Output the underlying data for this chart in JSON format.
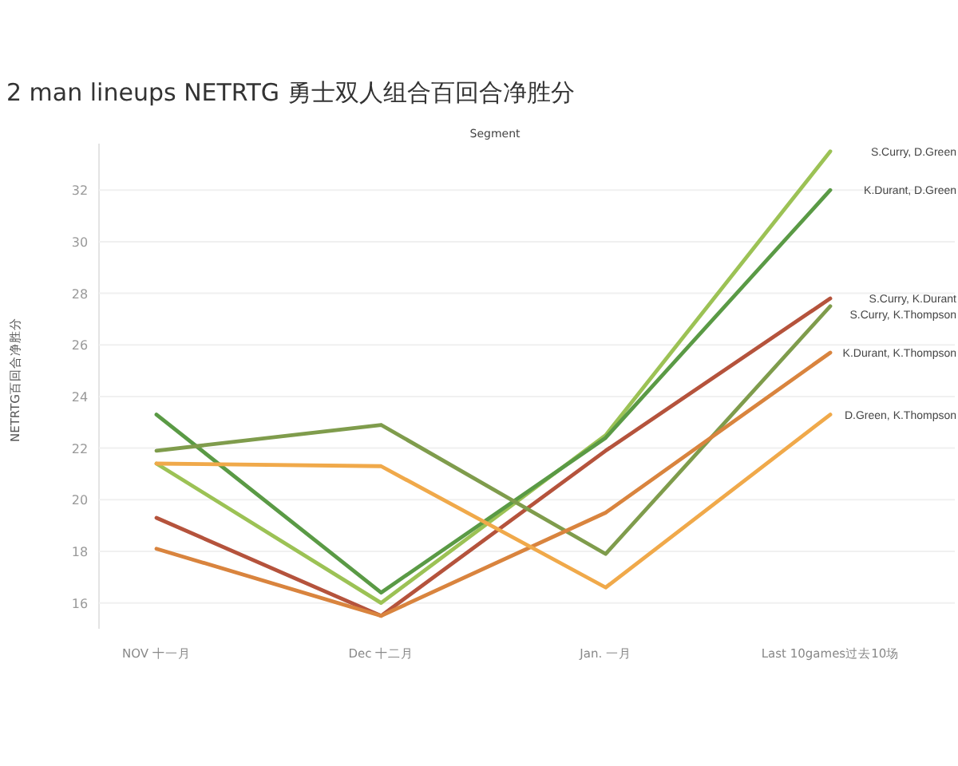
{
  "chart_data": {
    "type": "line",
    "title": "2 man lineups NETRTG 勇士双人组合百回合净胜分",
    "ylabel": "NETRTG百回合净胜分",
    "annotations": [
      "Segment"
    ],
    "categories": [
      "NOV 十一月",
      "Dec 十二月",
      "Jan. 一月",
      "Last 10games过去10场"
    ],
    "series": [
      {
        "name": "S.Curry, D.Green",
        "color": "#9cc255",
        "values": [
          21.4,
          16.0,
          22.5,
          33.5
        ]
      },
      {
        "name": "K.Durant, D.Green",
        "color": "#5a9a45",
        "values": [
          23.3,
          16.4,
          22.4,
          32.0
        ]
      },
      {
        "name": "S.Curry, K.Durant",
        "color": "#b5533c",
        "values": [
          19.3,
          15.5,
          21.9,
          27.8
        ]
      },
      {
        "name": "S.Curry, K.Thompson",
        "color": "#7f9c4c",
        "values": [
          21.9,
          22.9,
          17.9,
          27.5
        ]
      },
      {
        "name": "K.Durant, K.Thompson",
        "color": "#d9843e",
        "values": [
          18.1,
          15.5,
          19.5,
          25.7
        ]
      },
      {
        "name": "D.Green, K.Thompson",
        "color": "#f0a94a",
        "values": [
          21.4,
          21.3,
          16.6,
          23.3
        ]
      }
    ],
    "ylim": [
      15,
      33.8
    ],
    "yticks": [
      16,
      18,
      20,
      22,
      24,
      26,
      28,
      30,
      32
    ],
    "grid": "y",
    "marker": "none",
    "line_style": "solid"
  }
}
